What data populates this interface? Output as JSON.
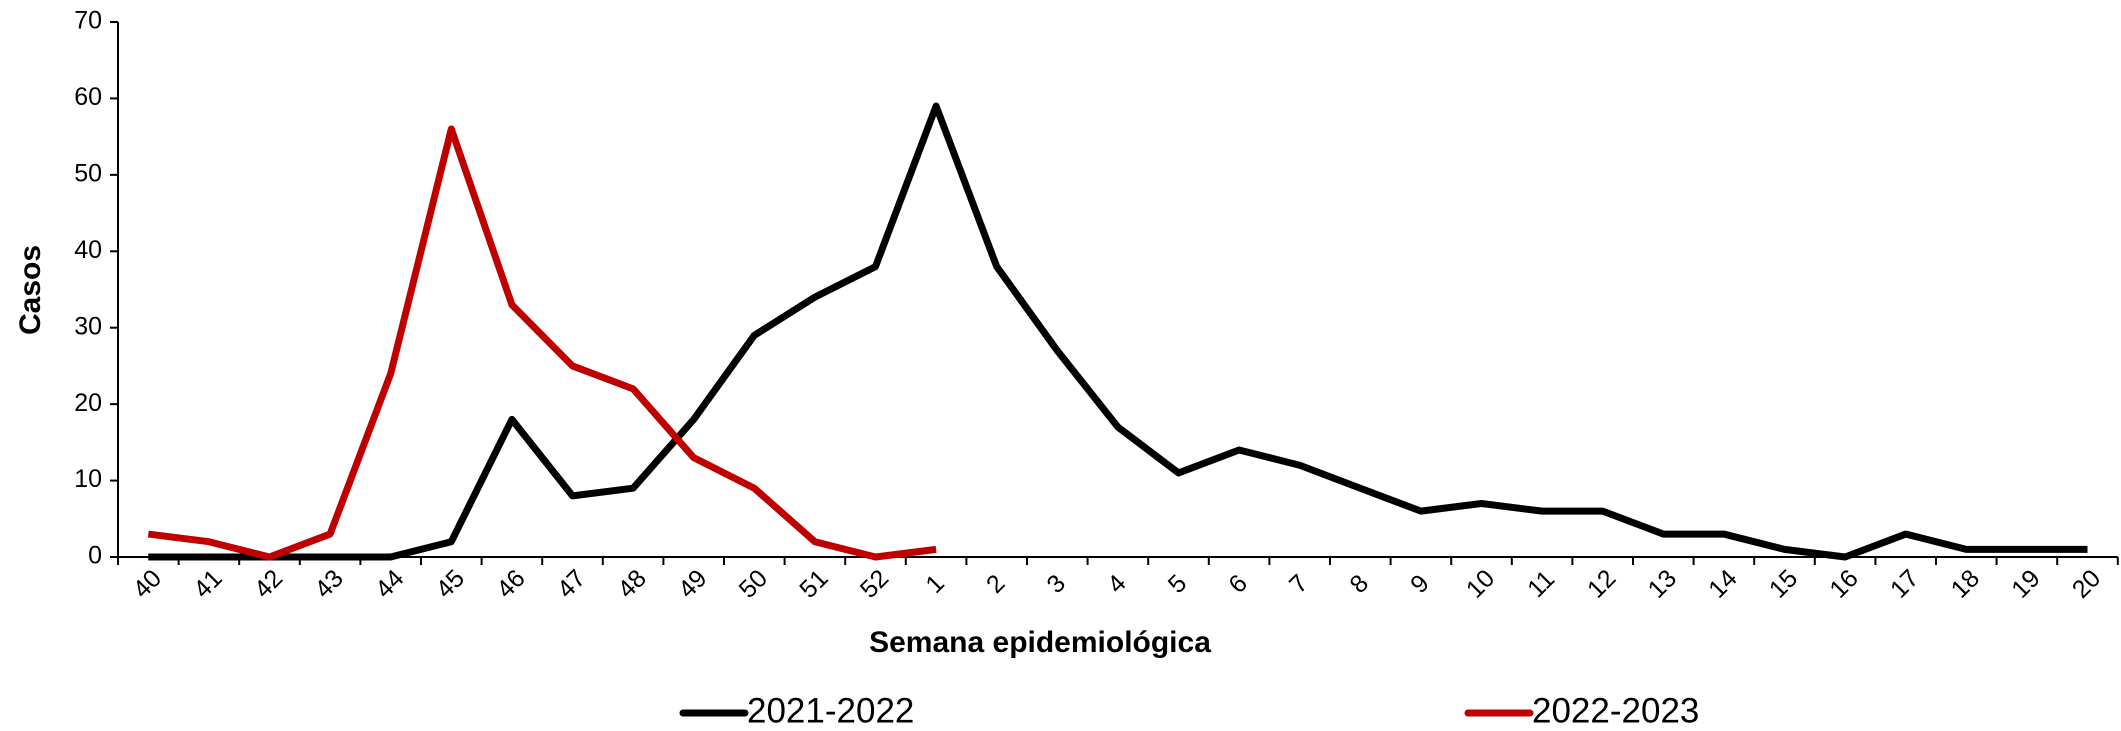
{
  "chart_data": {
    "type": "line",
    "x_label": "Semana epidemiológica",
    "y_label": "Casos",
    "categories": [
      "40",
      "41",
      "42",
      "43",
      "44",
      "45",
      "46",
      "47",
      "48",
      "49",
      "50",
      "51",
      "52",
      "1",
      "2",
      "3",
      "4",
      "5",
      "6",
      "7",
      "8",
      "9",
      "10",
      "11",
      "12",
      "13",
      "14",
      "15",
      "16",
      "17",
      "18",
      "19",
      "20"
    ],
    "series": [
      {
        "name": "2021-2022",
        "color": "#000000",
        "values": [
          0,
          0,
          0,
          0,
          0,
          2,
          18,
          8,
          9,
          18,
          29,
          34,
          38,
          59,
          38,
          27,
          17,
          11,
          14,
          12,
          9,
          6,
          7,
          6,
          6,
          3,
          3,
          1,
          0,
          3,
          1,
          1,
          1
        ]
      },
      {
        "name": "2022-2023",
        "color": "#c00000",
        "values": [
          3,
          2,
          0,
          3,
          24,
          56,
          33,
          25,
          22,
          13,
          9,
          2,
          0,
          1,
          null,
          null,
          null,
          null,
          null,
          null,
          null,
          null,
          null,
          null,
          null,
          null,
          null,
          null,
          null,
          null,
          null,
          null,
          null
        ]
      }
    ],
    "ylim": [
      0,
      70
    ],
    "yticks": [
      0,
      10,
      20,
      30,
      40,
      50,
      60,
      70
    ],
    "grid": false,
    "legend": "bottom"
  }
}
